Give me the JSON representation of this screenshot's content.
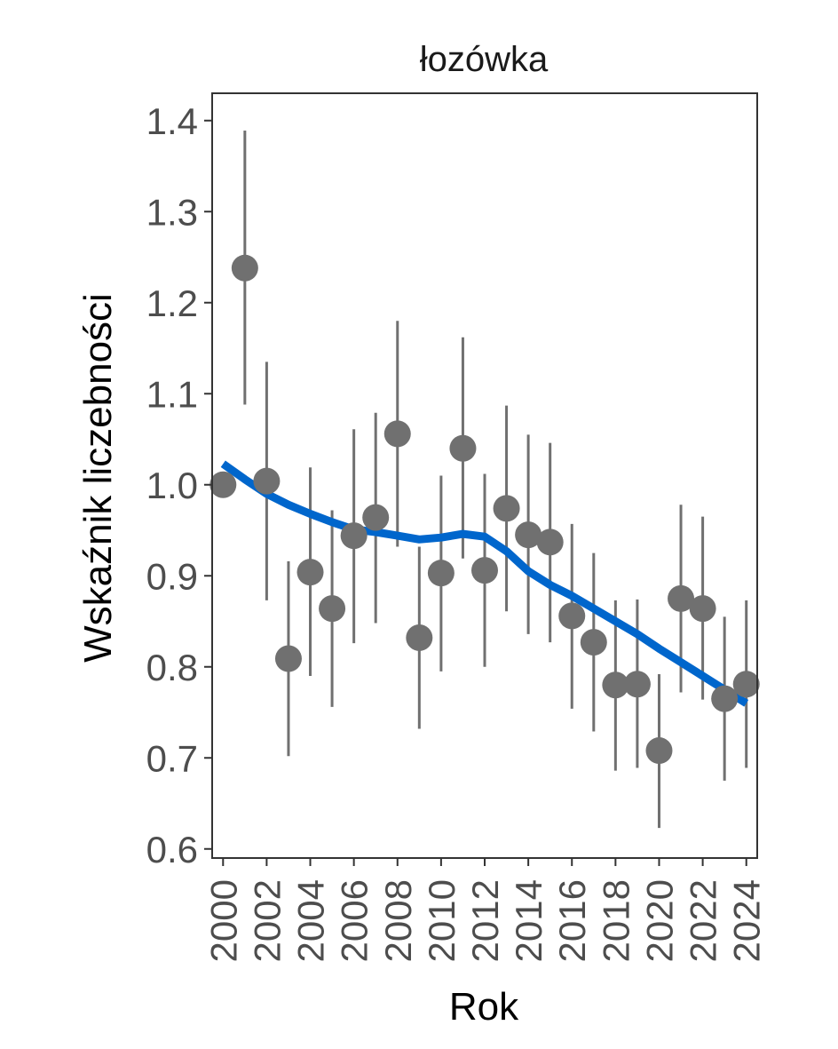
{
  "chart_data": {
    "type": "scatter",
    "title": "łozówka",
    "xlabel": "Rok",
    "ylabel": "Wskaźnik liczebności",
    "xlim": [
      1999.5,
      2024.5
    ],
    "ylim": [
      0.59,
      1.43
    ],
    "yticks": [
      0.6,
      0.7,
      0.8,
      0.9,
      1.0,
      1.1,
      1.2,
      1.3,
      1.4
    ],
    "ytick_labels": [
      "0.6",
      "0.7",
      "0.8",
      "0.9",
      "1.0",
      "1.1",
      "1.2",
      "1.3",
      "1.4"
    ],
    "xticks": [
      2000,
      2002,
      2004,
      2006,
      2008,
      2010,
      2012,
      2014,
      2016,
      2018,
      2020,
      2022,
      2024
    ],
    "xtick_labels": [
      "2000",
      "2002",
      "2004",
      "2006",
      "2008",
      "2010",
      "2012",
      "2014",
      "2016",
      "2018",
      "2020",
      "2022",
      "2024"
    ],
    "grid": false,
    "series": [
      {
        "name": "index",
        "kind": "points_with_errorbars",
        "color": "#707070",
        "x": [
          2000,
          2001,
          2002,
          2003,
          2004,
          2005,
          2006,
          2007,
          2008,
          2009,
          2010,
          2011,
          2012,
          2013,
          2014,
          2015,
          2016,
          2017,
          2018,
          2019,
          2020,
          2021,
          2022,
          2023,
          2024
        ],
        "y": [
          1.0,
          1.238,
          1.004,
          0.809,
          0.904,
          0.864,
          0.944,
          0.964,
          1.056,
          0.832,
          0.903,
          1.04,
          0.906,
          0.974,
          0.945,
          0.937,
          0.856,
          0.827,
          0.78,
          0.781,
          0.708,
          0.875,
          0.864,
          0.765,
          0.781
        ],
        "lower": [
          null,
          1.088,
          0.873,
          0.702,
          0.79,
          0.756,
          0.826,
          0.848,
          0.932,
          0.732,
          0.795,
          0.919,
          0.8,
          0.861,
          0.836,
          0.827,
          0.754,
          0.729,
          0.686,
          0.689,
          0.623,
          0.772,
          0.764,
          0.675,
          0.689
        ],
        "upper": [
          null,
          1.389,
          1.135,
          0.916,
          1.019,
          0.972,
          1.061,
          1.079,
          1.18,
          0.932,
          1.01,
          1.162,
          1.012,
          1.087,
          1.055,
          1.046,
          0.957,
          0.925,
          0.873,
          0.874,
          0.792,
          0.978,
          0.965,
          0.855,
          0.873
        ]
      },
      {
        "name": "trend",
        "kind": "smooth_line",
        "color": "#0066cc",
        "x": [
          2000,
          2001,
          2002,
          2003,
          2004,
          2005,
          2006,
          2007,
          2008,
          2009,
          2010,
          2011,
          2012,
          2013,
          2014,
          2015,
          2016,
          2017,
          2018,
          2019,
          2020,
          2021,
          2022,
          2023,
          2024
        ],
        "y": [
          1.023,
          1.006,
          0.99,
          0.978,
          0.968,
          0.959,
          0.951,
          0.948,
          0.944,
          0.94,
          0.942,
          0.946,
          0.943,
          0.927,
          0.905,
          0.89,
          0.878,
          0.864,
          0.85,
          0.836,
          0.82,
          0.805,
          0.79,
          0.775,
          0.76
        ]
      }
    ]
  }
}
